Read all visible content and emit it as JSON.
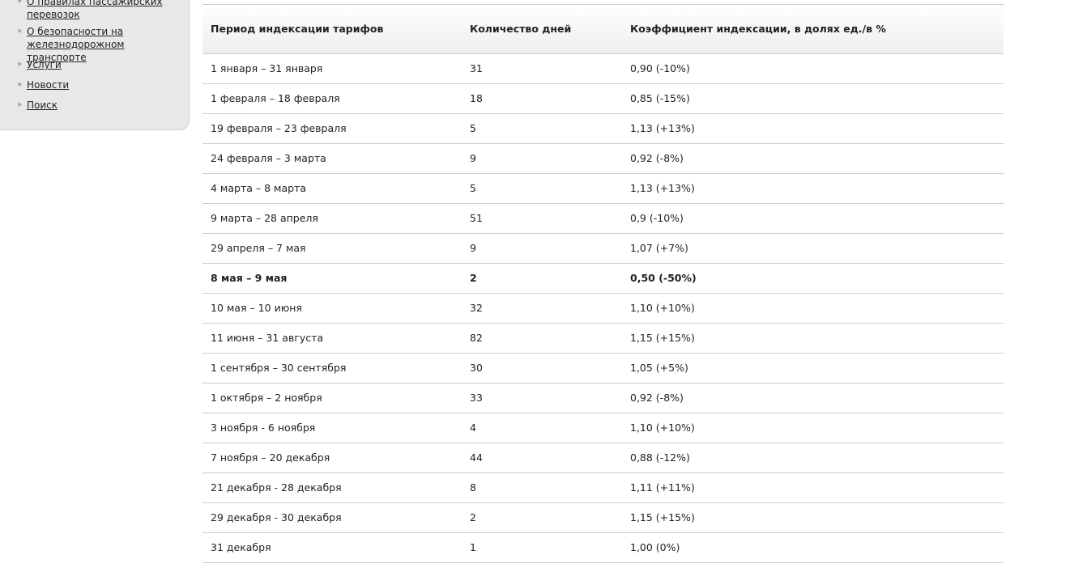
{
  "sidebar": {
    "items": [
      {
        "label": "О правилах пассажирских перевозок"
      },
      {
        "label": "О безопасности на железнодорожном транспорте"
      },
      {
        "label": "Услуги"
      },
      {
        "label": "Новости"
      },
      {
        "label": "Поиск"
      }
    ]
  },
  "table": {
    "headers": [
      "Период индексации тарифов",
      "Количество дней",
      "Коэффициент индексации, в долях ед./в %"
    ],
    "rows": [
      {
        "period": "1 января – 31 января",
        "days": "31",
        "coef": "0,90 (-10%)"
      },
      {
        "period": "1 февраля – 18 февраля",
        "days": "18",
        "coef": "0,85 (-15%)"
      },
      {
        "period": "19 февраля – 23 февраля",
        "days": "5",
        "coef": "1,13 (+13%)"
      },
      {
        "period": "24 февраля – 3 марта",
        "days": "9",
        "coef": "0,92 (-8%)"
      },
      {
        "period": "4 марта – 8 марта",
        "days": "5",
        "coef": "1,13 (+13%)"
      },
      {
        "period": "9 марта – 28 апреля",
        "days": "51",
        "coef": "0,9 (-10%)"
      },
      {
        "period": "29 апреля – 7 мая",
        "days": "9",
        "coef": "1,07 (+7%)"
      },
      {
        "period": "8 мая – 9 мая",
        "days": "2",
        "coef": "0,50 (-50%)",
        "bold": true
      },
      {
        "period": "10 мая – 10 июня",
        "days": "32",
        "coef": "1,10 (+10%)"
      },
      {
        "period": "11 июня – 31 августа",
        "days": "82",
        "coef": "1,15 (+15%)"
      },
      {
        "period": "1 сентября – 30 сентября",
        "days": "30",
        "coef": "1,05 (+5%)"
      },
      {
        "period": "1 октября – 2 ноября",
        "days": "33",
        "coef": "0,92 (-8%)"
      },
      {
        "period": "3 ноября - 6 ноября",
        "days": "4",
        "coef": "1,10 (+10%)"
      },
      {
        "period": "7 ноября – 20 декабря",
        "days": "44",
        "coef": "0,88 (-12%)"
      },
      {
        "period": "21 декабря - 28 декабря",
        "days": "8",
        "coef": "1,11 (+11%)"
      },
      {
        "period": "29 декабря - 30 декабря",
        "days": "2",
        "coef": "1,15 (+15%)"
      },
      {
        "period": "31 декабря",
        "days": "1",
        "coef": "1,00 (0%)"
      }
    ]
  }
}
